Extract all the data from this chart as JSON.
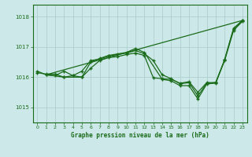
{
  "title": "Graphe pression niveau de la mer (hPa)",
  "background_color": "#cce8e8",
  "grid_color": "#aacccc",
  "line_color": "#1a6b1a",
  "xlim": [
    -0.5,
    23.5
  ],
  "ylim": [
    1014.5,
    1018.4
  ],
  "yticks": [
    1015,
    1016,
    1017,
    1018
  ],
  "xticks": [
    0,
    1,
    2,
    3,
    4,
    5,
    6,
    7,
    8,
    9,
    10,
    11,
    12,
    13,
    14,
    15,
    16,
    17,
    18,
    19,
    20,
    21,
    22,
    23
  ],
  "series1_x": [
    0,
    1,
    2,
    3,
    4,
    5,
    6,
    7,
    8,
    9,
    10,
    11,
    12,
    13,
    14,
    15,
    16,
    17,
    18,
    19,
    20,
    21,
    22,
    23
  ],
  "series1_y": [
    1016.15,
    1016.1,
    1016.1,
    1016.0,
    1016.05,
    1016.0,
    1016.3,
    1016.55,
    1016.65,
    1016.68,
    1016.75,
    1016.8,
    1016.72,
    1015.98,
    1015.95,
    1015.93,
    1015.8,
    1015.85,
    1015.5,
    1015.82,
    1015.82,
    1016.55,
    1017.55,
    1017.85
  ],
  "series2_x": [
    0,
    1,
    2,
    3,
    4,
    5,
    6,
    7,
    8,
    9,
    10,
    11,
    12,
    13,
    14,
    15,
    16,
    17,
    18,
    19,
    20,
    21,
    22,
    23
  ],
  "series2_y": [
    1016.2,
    1016.08,
    1016.05,
    1016.2,
    1016.05,
    1016.2,
    1016.55,
    1016.6,
    1016.7,
    1016.75,
    1016.8,
    1016.88,
    1016.78,
    1016.55,
    1016.08,
    1015.95,
    1015.78,
    1015.82,
    1015.38,
    1015.8,
    1015.82,
    1016.58,
    1017.6,
    1017.88
  ],
  "series3_x": [
    1,
    3,
    5,
    6,
    7,
    8,
    10,
    11,
    12,
    14,
    15,
    16,
    17,
    18,
    19,
    20,
    21,
    22,
    23
  ],
  "series3_y": [
    1016.08,
    1016.0,
    1016.0,
    1016.5,
    1016.62,
    1016.72,
    1016.82,
    1016.95,
    1016.82,
    1015.93,
    1015.88,
    1015.72,
    1015.72,
    1015.28,
    1015.78,
    1015.8,
    1016.58,
    1017.62,
    1017.88
  ],
  "series4_x": [
    1,
    23
  ],
  "series4_y": [
    1016.08,
    1017.88
  ]
}
